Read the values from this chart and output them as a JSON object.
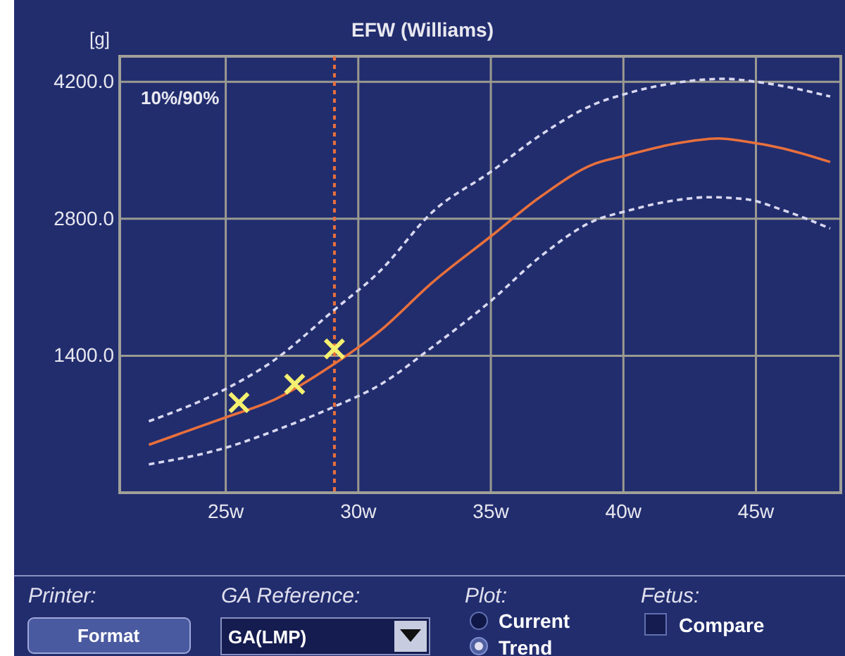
{
  "chart_data": {
    "type": "line",
    "title": "EFW (Williams)",
    "ylabel": "[g]",
    "xlim": [
      21,
      48.2
    ],
    "ylim": [
      0,
      4460
    ],
    "xticks": [
      {
        "value": 25,
        "label": "25w"
      },
      {
        "value": 30,
        "label": "30w"
      },
      {
        "value": 35,
        "label": "35w"
      },
      {
        "value": 40,
        "label": "40w"
      },
      {
        "value": 45,
        "label": "45w"
      }
    ],
    "yticks": [
      {
        "value": 1400,
        "label": "1400.0"
      },
      {
        "value": 2800,
        "label": "2800.0"
      },
      {
        "value": 4200,
        "label": "4200.0"
      }
    ],
    "grid": true,
    "series": [
      {
        "color": "#d8d8f0",
        "line_style": "dashed",
        "x": [
          22.1,
          25,
          26.7,
          29.1,
          30.8,
          32.8,
          35,
          36.9,
          38.9,
          40,
          42,
          43.8,
          45,
          47.8
        ],
        "values": [
          730,
          1060,
          1330,
          1870,
          2260,
          2870,
          3280,
          3660,
          3970,
          4070,
          4190,
          4230,
          4200,
          4050
        ]
      },
      {
        "color": "#e8703c",
        "line_style": "solid",
        "x": [
          22.1,
          25,
          26.9,
          29,
          30.8,
          32.8,
          35,
          36.9,
          38.9,
          40,
          42,
          43.6,
          44.6,
          46,
          47.8
        ],
        "values": [
          490,
          770,
          960,
          1300,
          1650,
          2150,
          2620,
          3030,
          3360,
          3440,
          3570,
          3620,
          3590,
          3520,
          3380
        ]
      },
      {
        "color": "#d8d8f0",
        "line_style": "dashed",
        "x": [
          22.1,
          25,
          27.1,
          29.1,
          30.8,
          32.8,
          35,
          36.9,
          38.9,
          40,
          42,
          43.2,
          44.6,
          46,
          47.8
        ],
        "values": [
          290,
          460,
          660,
          880,
          1100,
          1490,
          1960,
          2420,
          2780,
          2870,
          2990,
          3020,
          3000,
          2890,
          2700
        ]
      },
      {
        "type": "scatter",
        "color": "#f4f070",
        "marker": "cross",
        "x": [
          25.5,
          27.6,
          29.1
        ],
        "values": [
          920,
          1110,
          1470
        ]
      }
    ],
    "ref_lines": [
      {
        "axis": "x",
        "value": 29.1,
        "label": null,
        "color": "#e8703c",
        "line_style": "dotted"
      }
    ],
    "annotations": [
      "10%/90%",
      "Printer:",
      "GA Reference:",
      "Plot:",
      "Fetus:",
      "Format",
      "GA(LMP)",
      "Current",
      "Trend",
      "Compare"
    ]
  }
}
